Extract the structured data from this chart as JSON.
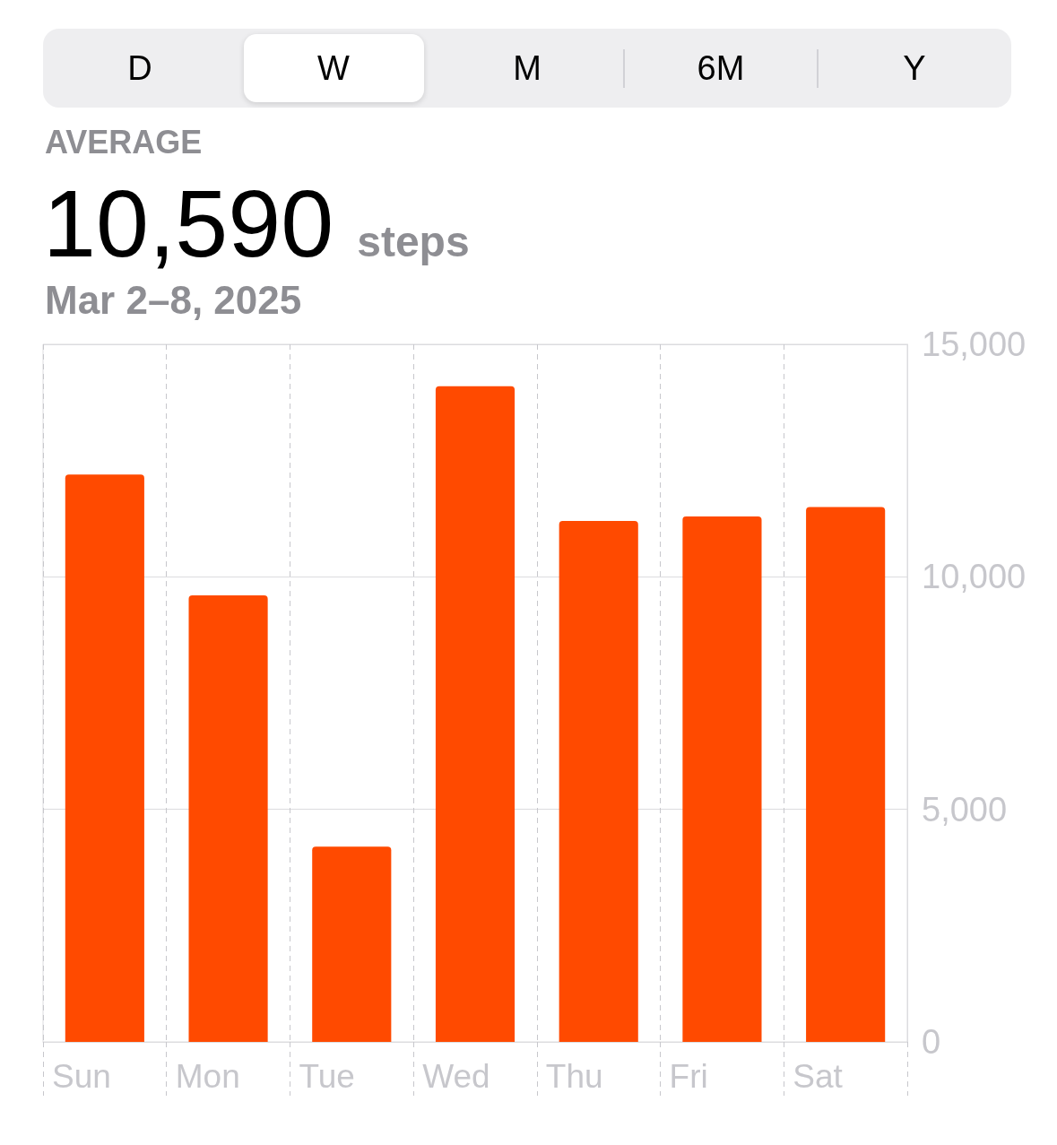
{
  "chart_data": {
    "type": "bar",
    "title": "AVERAGE",
    "annotations": [
      "D",
      "W",
      "M",
      "6M",
      "Y",
      "10,590",
      "steps"
    ],
    "subtitle": "Mar 2–8, 2025",
    "categories": [
      "Sun",
      "Mon",
      "Tue",
      "Wed",
      "Thu",
      "Fri",
      "Sat"
    ],
    "values": [
      12200,
      9600,
      4200,
      14100,
      11200,
      11300,
      11500
    ],
    "color": "#ff4a00",
    "ylim": [
      0,
      15000
    ],
    "yticks": [
      0,
      {
        "value": 5000,
        "label": "5,000"
      },
      {
        "value": 10000,
        "label": "10,000"
      },
      {
        "value": 15000,
        "label": "15,000"
      }
    ],
    "grid": true
  }
}
